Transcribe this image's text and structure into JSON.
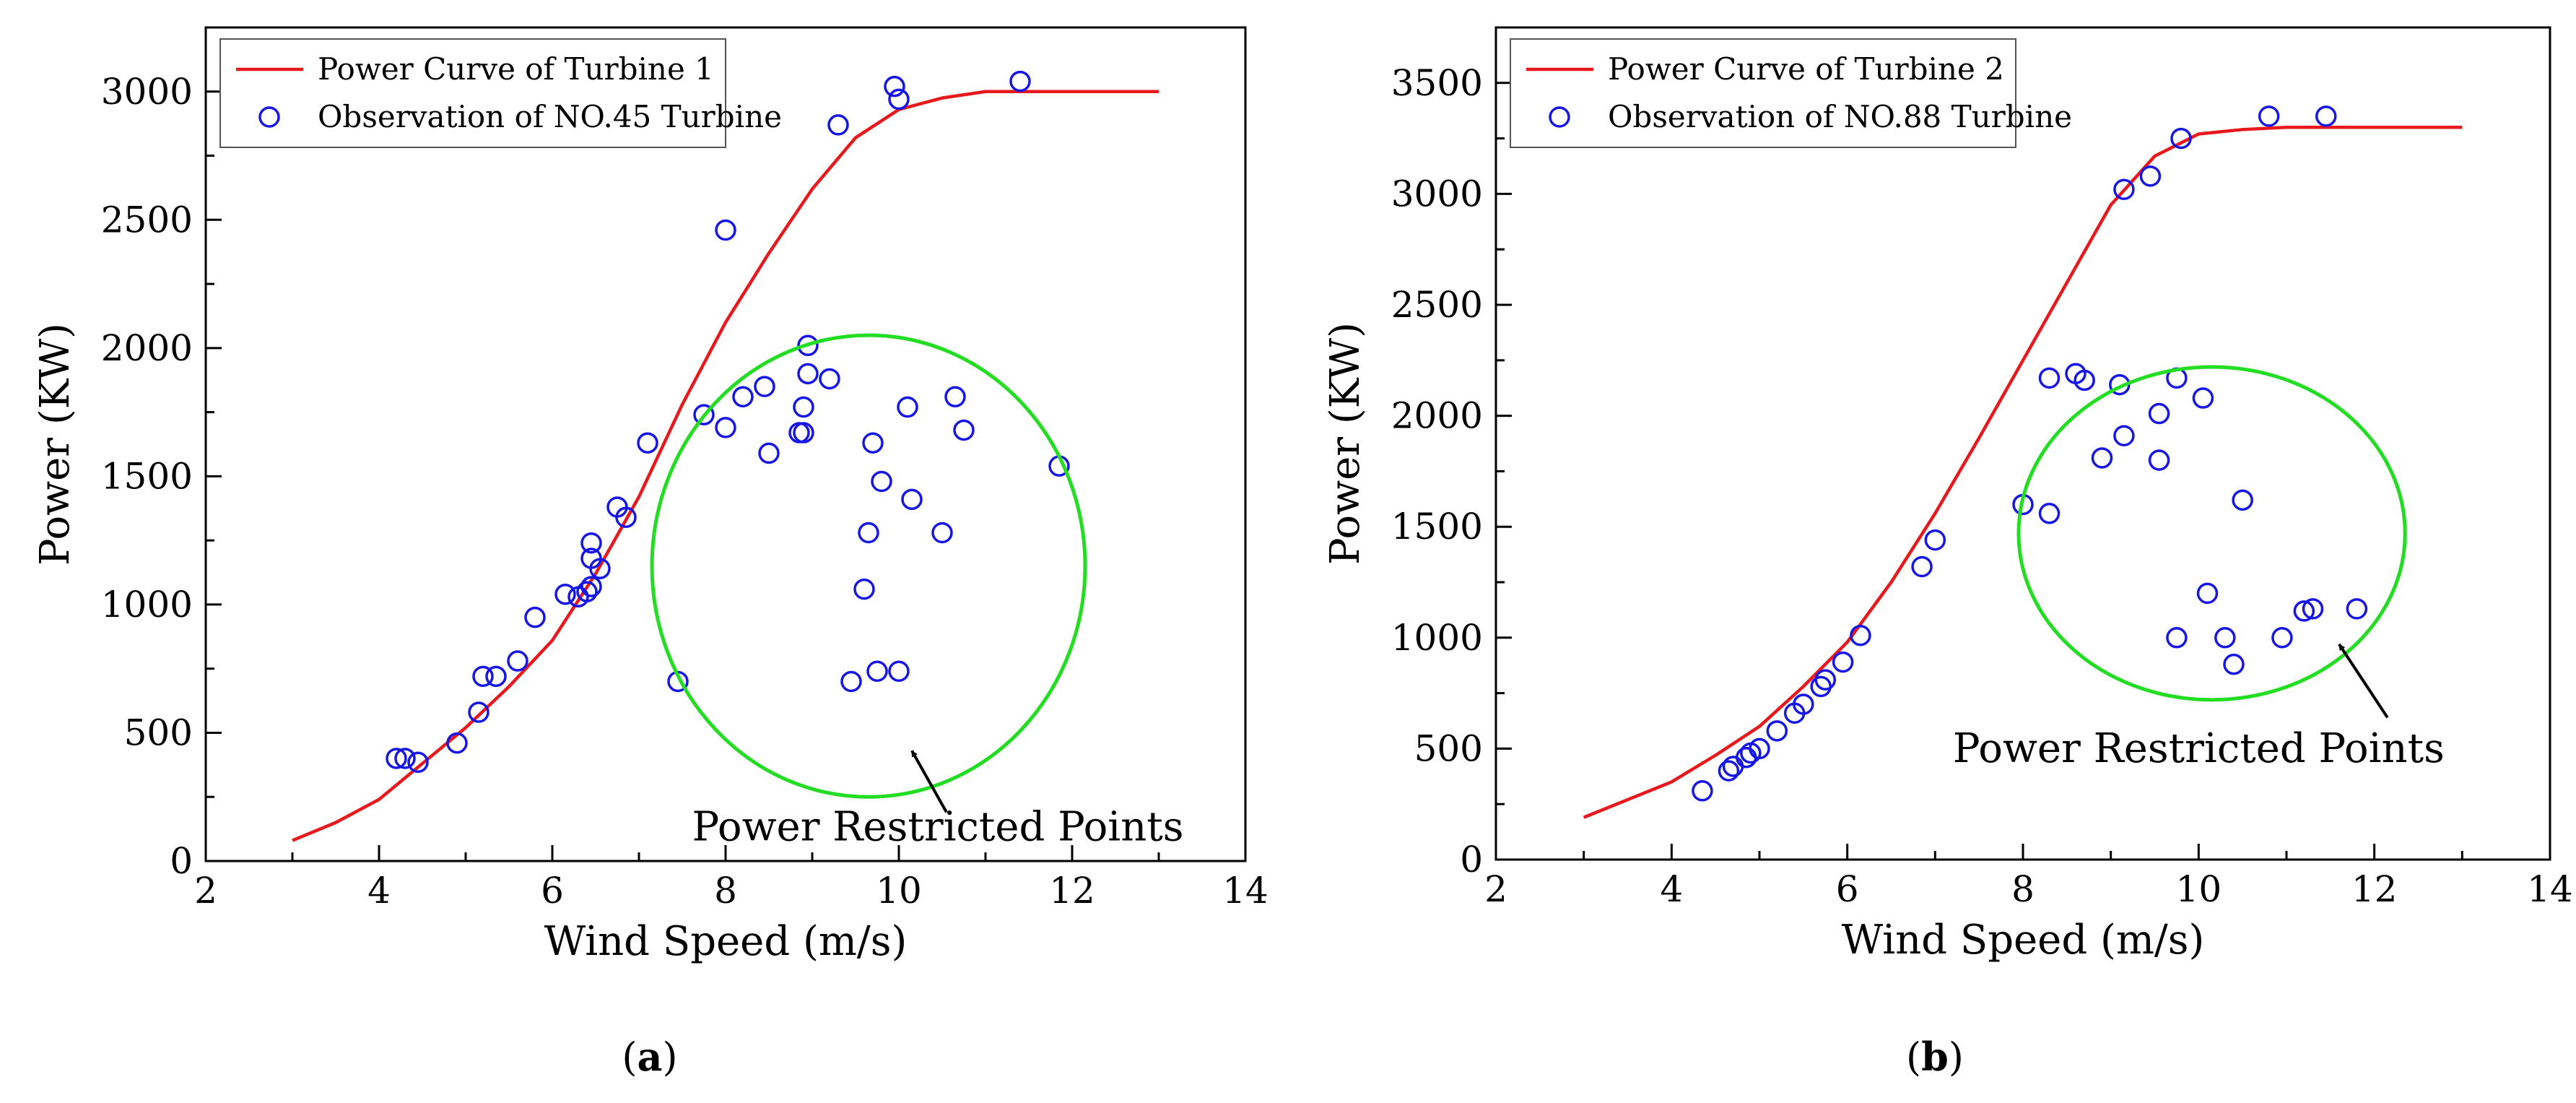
{
  "colors": {
    "curve": "#e8191d",
    "points": "#1616e6",
    "circle": "#22dd22",
    "axis": "#000000"
  },
  "chart_data": [
    {
      "type": "scatter",
      "panel_label": "a",
      "xlabel": "Wind Speed (m/s)",
      "ylabel": "Power (KW)",
      "xlim": [
        2,
        14
      ],
      "ylim": [
        0,
        3250
      ],
      "xticks": [
        2,
        4,
        6,
        8,
        10,
        12,
        14
      ],
      "yticks": [
        0,
        500,
        1000,
        1500,
        2000,
        2500,
        3000
      ],
      "legend": {
        "position": "top-left",
        "entries": [
          "Power Curve of Turbine 1",
          "Observation of NO.45 Turbine"
        ]
      },
      "curve": {
        "name": "Power Curve of Turbine 1",
        "x": [
          3,
          3.5,
          4,
          4.5,
          5,
          5.5,
          6,
          6.5,
          7,
          7.5,
          8,
          8.5,
          9,
          9.5,
          10,
          10.5,
          11,
          11.5,
          12,
          12.5,
          13
        ],
        "y": [
          80,
          150,
          240,
          380,
          520,
          680,
          860,
          1120,
          1420,
          1780,
          2100,
          2370,
          2620,
          2820,
          2930,
          2975,
          3000,
          3000,
          3000,
          3000,
          3000
        ]
      },
      "observations": {
        "name": "Observation of NO.45 Turbine",
        "points": [
          [
            4.2,
            400
          ],
          [
            4.3,
            400
          ],
          [
            4.45,
            385
          ],
          [
            4.9,
            460
          ],
          [
            5.15,
            580
          ],
          [
            5.2,
            720
          ],
          [
            5.35,
            720
          ],
          [
            5.6,
            780
          ],
          [
            5.8,
            950
          ],
          [
            6.15,
            1040
          ],
          [
            6.3,
            1030
          ],
          [
            6.4,
            1050
          ],
          [
            6.45,
            1070
          ],
          [
            6.45,
            1180
          ],
          [
            6.45,
            1240
          ],
          [
            6.55,
            1140
          ],
          [
            6.75,
            1380
          ],
          [
            6.85,
            1340
          ],
          [
            7.1,
            1630
          ],
          [
            7.45,
            700
          ],
          [
            7.75,
            1740
          ],
          [
            8.0,
            1690
          ],
          [
            8.0,
            2460
          ],
          [
            8.2,
            1810
          ],
          [
            8.45,
            1850
          ],
          [
            8.5,
            1590
          ],
          [
            8.85,
            1670
          ],
          [
            8.9,
            1670
          ],
          [
            8.9,
            1770
          ],
          [
            8.95,
            2010
          ],
          [
            8.95,
            1900
          ],
          [
            9.2,
            1880
          ],
          [
            9.3,
            2870
          ],
          [
            9.45,
            700
          ],
          [
            9.6,
            1060
          ],
          [
            9.65,
            1280
          ],
          [
            9.7,
            1630
          ],
          [
            9.75,
            740
          ],
          [
            9.8,
            1480
          ],
          [
            9.95,
            3020
          ],
          [
            10.0,
            740
          ],
          [
            10.0,
            2970
          ],
          [
            10.1,
            1770
          ],
          [
            10.15,
            1410
          ],
          [
            10.5,
            1280
          ],
          [
            10.65,
            1810
          ],
          [
            10.75,
            1680
          ],
          [
            11.4,
            3040
          ],
          [
            11.85,
            1540
          ]
        ]
      },
      "highlight": {
        "label": "Power Restricted Points",
        "center": [
          9.65,
          1150
        ],
        "radius_x": 2.5,
        "radius_y": 900
      },
      "annotation": {
        "text": "Power Restricted Points",
        "text_at": [
          10.45,
          80
        ],
        "arrow_from": [
          10.55,
          190
        ],
        "arrow_to": [
          10.15,
          430
        ]
      }
    },
    {
      "type": "scatter",
      "panel_label": "b",
      "xlabel": "Wind Speed (m/s)",
      "ylabel": "Power (KW)",
      "xlim": [
        2,
        14
      ],
      "ylim": [
        0,
        3750
      ],
      "xticks": [
        2,
        4,
        6,
        8,
        10,
        12,
        14
      ],
      "yticks": [
        0,
        500,
        1000,
        1500,
        2000,
        2500,
        3000,
        3500
      ],
      "legend": {
        "position": "top-left",
        "entries": [
          "Power Curve of Turbine 2",
          "Observation of NO.88 Turbine"
        ]
      },
      "curve": {
        "name": "Power Curve of Turbine 2",
        "x": [
          3,
          3.5,
          4,
          4.5,
          5,
          5.5,
          6,
          6.5,
          7,
          7.5,
          8,
          8.5,
          9,
          9.5,
          10,
          10.5,
          11,
          11.5,
          12,
          12.5,
          13
        ],
        "y": [
          190,
          270,
          350,
          470,
          600,
          780,
          980,
          1250,
          1560,
          1900,
          2250,
          2600,
          2950,
          3170,
          3270,
          3290,
          3300,
          3300,
          3300,
          3300,
          3300
        ]
      },
      "observations": {
        "name": "Observation of NO.88 Turbine",
        "points": [
          [
            4.35,
            310
          ],
          [
            4.65,
            400
          ],
          [
            4.7,
            420
          ],
          [
            4.85,
            460
          ],
          [
            4.9,
            480
          ],
          [
            5.0,
            500
          ],
          [
            5.2,
            580
          ],
          [
            5.4,
            660
          ],
          [
            5.5,
            700
          ],
          [
            5.7,
            780
          ],
          [
            5.75,
            810
          ],
          [
            5.95,
            890
          ],
          [
            6.15,
            1010
          ],
          [
            6.85,
            1320
          ],
          [
            7.0,
            1440
          ],
          [
            8.0,
            1600
          ],
          [
            8.3,
            1560
          ],
          [
            8.3,
            2170
          ],
          [
            8.6,
            2190
          ],
          [
            8.7,
            2160
          ],
          [
            8.9,
            1810
          ],
          [
            9.1,
            2140
          ],
          [
            9.15,
            1910
          ],
          [
            9.15,
            3020
          ],
          [
            9.45,
            3080
          ],
          [
            9.55,
            2010
          ],
          [
            9.55,
            1800
          ],
          [
            9.75,
            1000
          ],
          [
            9.75,
            2170
          ],
          [
            9.8,
            3250
          ],
          [
            10.05,
            2080
          ],
          [
            10.1,
            1200
          ],
          [
            10.3,
            1000
          ],
          [
            10.4,
            880
          ],
          [
            10.5,
            1620
          ],
          [
            10.8,
            3350
          ],
          [
            10.95,
            1000
          ],
          [
            11.2,
            1120
          ],
          [
            11.3,
            1130
          ],
          [
            11.45,
            3350
          ],
          [
            11.8,
            1130
          ]
        ]
      },
      "highlight": {
        "label": "Power Restricted Points",
        "center": [
          10.15,
          1470
        ],
        "radius_x": 2.2,
        "radius_y": 750
      },
      "annotation": {
        "text": "Power Restricted Points",
        "text_at": [
          10.0,
          440
        ],
        "arrow_from": [
          12.15,
          640
        ],
        "arrow_to": [
          11.6,
          970
        ]
      }
    }
  ]
}
